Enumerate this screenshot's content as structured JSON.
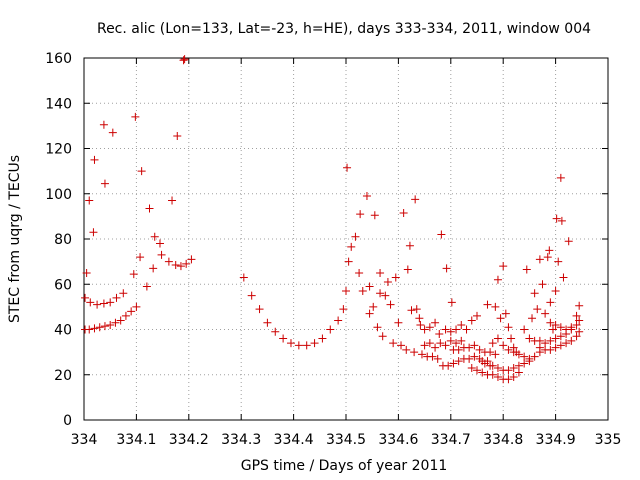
{
  "chart_data": {
    "type": "scatter",
    "title": "Rec. alic (Lon=133, Lat=-23, h=HE), days 333-334, 2011, window 004",
    "xlabel": "GPS time / Days of year 2011",
    "ylabel": "STEC from uqrg / TECUs",
    "xlim": [
      334,
      335
    ],
    "ylim": [
      0,
      160
    ],
    "x_ticks": [
      334,
      334.1,
      334.2,
      334.3,
      334.4,
      334.5,
      334.6,
      334.7,
      334.8,
      334.9,
      335
    ],
    "x_tick_labels": [
      "334",
      "334.1",
      "334.2",
      "334.3",
      "334.4",
      "334.5",
      "334.6",
      "334.7",
      "334.8",
      "334.9",
      "335"
    ],
    "y_ticks": [
      0,
      20,
      40,
      60,
      80,
      100,
      120,
      140,
      160
    ],
    "y_tick_labels": [
      "0",
      "20",
      "40",
      "60",
      "80",
      "100",
      "120",
      "140",
      "160"
    ],
    "grid": true,
    "marker": "+",
    "color": "#cc0000",
    "series": [
      {
        "name": "STEC",
        "points": [
          [
            334.002,
            40
          ],
          [
            334.01,
            40
          ],
          [
            334.02,
            40.5
          ],
          [
            334.03,
            41
          ],
          [
            334.04,
            41.5
          ],
          [
            334.05,
            42
          ],
          [
            334.06,
            43
          ],
          [
            334.07,
            44
          ],
          [
            334.08,
            46
          ],
          [
            334.09,
            48
          ],
          [
            334.1,
            50
          ],
          [
            334.002,
            54
          ],
          [
            334.012,
            52
          ],
          [
            334.025,
            51
          ],
          [
            334.038,
            51.5
          ],
          [
            334.05,
            52
          ],
          [
            334.062,
            54
          ],
          [
            334.075,
            56
          ],
          [
            334.005,
            65
          ],
          [
            334.01,
            97
          ],
          [
            334.02,
            115
          ],
          [
            334.018,
            83
          ],
          [
            334.038,
            130.5
          ],
          [
            334.04,
            104.5
          ],
          [
            334.055,
            127
          ],
          [
            334.098,
            134
          ],
          [
            334.095,
            64.5
          ],
          [
            334.107,
            72
          ],
          [
            334.11,
            110
          ],
          [
            334.12,
            59
          ],
          [
            334.125,
            93.5
          ],
          [
            334.132,
            67
          ],
          [
            334.135,
            81
          ],
          [
            334.145,
            78
          ],
          [
            334.148,
            73
          ],
          [
            334.162,
            70
          ],
          [
            334.168,
            97
          ],
          [
            334.178,
            125.5
          ],
          [
            334.175,
            68.5
          ],
          [
            334.185,
            68
          ],
          [
            334.19,
            159
          ],
          [
            334.192,
            159.5
          ],
          [
            334.195,
            69
          ],
          [
            334.205,
            71
          ],
          [
            334.305,
            63
          ],
          [
            334.32,
            55
          ],
          [
            334.335,
            49
          ],
          [
            334.35,
            43
          ],
          [
            334.365,
            39
          ],
          [
            334.38,
            36
          ],
          [
            334.395,
            34
          ],
          [
            334.41,
            33
          ],
          [
            334.425,
            33
          ],
          [
            334.44,
            34
          ],
          [
            334.455,
            36
          ],
          [
            334.47,
            40
          ],
          [
            334.485,
            44
          ],
          [
            334.495,
            49
          ],
          [
            334.5,
            57
          ],
          [
            334.502,
            111.5
          ],
          [
            334.505,
            70
          ],
          [
            334.51,
            76.5
          ],
          [
            334.518,
            81
          ],
          [
            334.525,
            65
          ],
          [
            334.527,
            91
          ],
          [
            334.532,
            57
          ],
          [
            334.54,
            99
          ],
          [
            334.545,
            59
          ],
          [
            334.555,
            90.5
          ],
          [
            334.565,
            65
          ],
          [
            334.545,
            47
          ],
          [
            334.552,
            50
          ],
          [
            334.56,
            41
          ],
          [
            334.565,
            56
          ],
          [
            334.57,
            37
          ],
          [
            334.575,
            55
          ],
          [
            334.58,
            61
          ],
          [
            334.585,
            51
          ],
          [
            334.59,
            34
          ],
          [
            334.595,
            63
          ],
          [
            334.6,
            43
          ],
          [
            334.605,
            33
          ],
          [
            334.61,
            91.5
          ],
          [
            334.615,
            31
          ],
          [
            334.618,
            66.5
          ],
          [
            334.622,
            77
          ],
          [
            334.625,
            48.5
          ],
          [
            334.63,
            30
          ],
          [
            334.632,
            97.5
          ],
          [
            334.635,
            49
          ],
          [
            334.64,
            45
          ],
          [
            334.642,
            42
          ],
          [
            334.645,
            29
          ],
          [
            334.65,
            40
          ],
          [
            334.655,
            28
          ],
          [
            334.66,
            41
          ],
          [
            334.665,
            28
          ],
          [
            334.67,
            43
          ],
          [
            334.675,
            27
          ],
          [
            334.678,
            38
          ],
          [
            334.685,
            24
          ],
          [
            334.65,
            33
          ],
          [
            334.66,
            34
          ],
          [
            334.67,
            32
          ],
          [
            334.68,
            34
          ],
          [
            334.69,
            33
          ],
          [
            334.7,
            35
          ],
          [
            334.71,
            34
          ],
          [
            334.72,
            35
          ],
          [
            334.682,
            82
          ],
          [
            334.692,
            67
          ],
          [
            334.702,
            52
          ],
          [
            334.69,
            40
          ],
          [
            334.7,
            39
          ],
          [
            334.71,
            40
          ],
          [
            334.72,
            42
          ],
          [
            334.73,
            40
          ],
          [
            334.74,
            44
          ],
          [
            334.75,
            46
          ],
          [
            334.695,
            24
          ],
          [
            334.705,
            25
          ],
          [
            334.715,
            26
          ],
          [
            334.725,
            27
          ],
          [
            334.735,
            27
          ],
          [
            334.745,
            28
          ],
          [
            334.755,
            27
          ],
          [
            334.765,
            25
          ],
          [
            334.775,
            24
          ],
          [
            334.705,
            31
          ],
          [
            334.715,
            31
          ],
          [
            334.725,
            32
          ],
          [
            334.735,
            32
          ],
          [
            334.745,
            33
          ],
          [
            334.755,
            31
          ],
          [
            334.765,
            30
          ],
          [
            334.775,
            30
          ],
          [
            334.785,
            29
          ],
          [
            334.74,
            23
          ],
          [
            334.75,
            22
          ],
          [
            334.76,
            21
          ],
          [
            334.77,
            20
          ],
          [
            334.78,
            20
          ],
          [
            334.79,
            19
          ],
          [
            334.8,
            18
          ],
          [
            334.81,
            18
          ],
          [
            334.82,
            19
          ],
          [
            334.83,
            21
          ],
          [
            334.76,
            26
          ],
          [
            334.77,
            26
          ],
          [
            334.78,
            24
          ],
          [
            334.79,
            23
          ],
          [
            334.8,
            22
          ],
          [
            334.81,
            22
          ],
          [
            334.82,
            23
          ],
          [
            334.83,
            24
          ],
          [
            334.84,
            25
          ],
          [
            334.85,
            26
          ],
          [
            334.77,
            51
          ],
          [
            334.785,
            50
          ],
          [
            334.79,
            62
          ],
          [
            334.795,
            45
          ],
          [
            334.8,
            68
          ],
          [
            334.805,
            47
          ],
          [
            334.81,
            41
          ],
          [
            334.815,
            36
          ],
          [
            334.82,
            32
          ],
          [
            334.825,
            30
          ],
          [
            334.78,
            34
          ],
          [
            334.79,
            36
          ],
          [
            334.8,
            33
          ],
          [
            334.81,
            31
          ],
          [
            334.82,
            30
          ],
          [
            334.83,
            29
          ],
          [
            334.84,
            28
          ],
          [
            334.85,
            27
          ],
          [
            334.86,
            28
          ],
          [
            334.87,
            30
          ],
          [
            334.84,
            40
          ],
          [
            334.845,
            66.5
          ],
          [
            334.85,
            36
          ],
          [
            334.855,
            45
          ],
          [
            334.86,
            56
          ],
          [
            334.865,
            49
          ],
          [
            334.87,
            71
          ],
          [
            334.875,
            60
          ],
          [
            334.88,
            47
          ],
          [
            334.885,
            72
          ],
          [
            334.888,
            75
          ],
          [
            334.89,
            52
          ],
          [
            334.895,
            40
          ],
          [
            334.9,
            57
          ],
          [
            334.902,
            89
          ],
          [
            334.905,
            70
          ],
          [
            334.91,
            107
          ],
          [
            334.912,
            88
          ],
          [
            334.915,
            63
          ],
          [
            334.925,
            79
          ],
          [
            334.86,
            35
          ],
          [
            334.87,
            35
          ],
          [
            334.88,
            34
          ],
          [
            334.89,
            35
          ],
          [
            334.9,
            36
          ],
          [
            334.91,
            37
          ],
          [
            334.92,
            38
          ],
          [
            334.93,
            40
          ],
          [
            334.94,
            42
          ],
          [
            334.945,
            44
          ],
          [
            334.87,
            32
          ],
          [
            334.88,
            31
          ],
          [
            334.89,
            31
          ],
          [
            334.9,
            32
          ],
          [
            334.91,
            33
          ],
          [
            334.92,
            34
          ],
          [
            334.93,
            35
          ],
          [
            334.94,
            37
          ],
          [
            334.945,
            39
          ],
          [
            334.89,
            43
          ],
          [
            334.9,
            42
          ],
          [
            334.91,
            41
          ],
          [
            334.92,
            40
          ],
          [
            334.93,
            41
          ],
          [
            334.94,
            46
          ],
          [
            334.945,
            50.5
          ]
        ]
      }
    ]
  }
}
